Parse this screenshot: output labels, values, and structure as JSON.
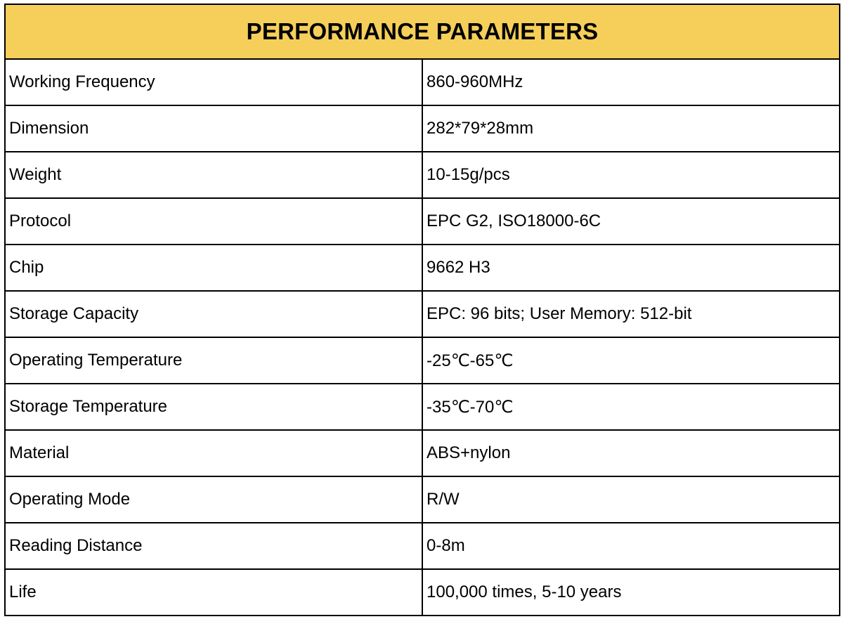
{
  "table": {
    "title": "PERFORMANCE PARAMETERS",
    "header_color": "#f5cf5a",
    "rows": [
      {
        "label": "Working Frequency",
        "value": "860-960MHz"
      },
      {
        "label": "Dimension",
        "value": "282*79*28mm"
      },
      {
        "label": "Weight",
        "value": "10-15g/pcs"
      },
      {
        "label": "Protocol",
        "value": "EPC G2, ISO18000-6C"
      },
      {
        "label": "Chip",
        "value": "9662 H3"
      },
      {
        "label": "Storage Capacity",
        "value": "EPC: 96 bits; User Memory: 512-bit"
      },
      {
        "label": "Operating Temperature",
        "value": "-25℃-65℃"
      },
      {
        "label": "Storage Temperature",
        "value": "-35℃-70℃"
      },
      {
        "label": "Material",
        "value": "ABS+nylon"
      },
      {
        "label": "Operating Mode",
        "value": "R/W"
      },
      {
        "label": "Reading Distance",
        "value": "0-8m"
      },
      {
        "label": "Life",
        "value": "100,000 times, 5-10 years"
      }
    ]
  }
}
